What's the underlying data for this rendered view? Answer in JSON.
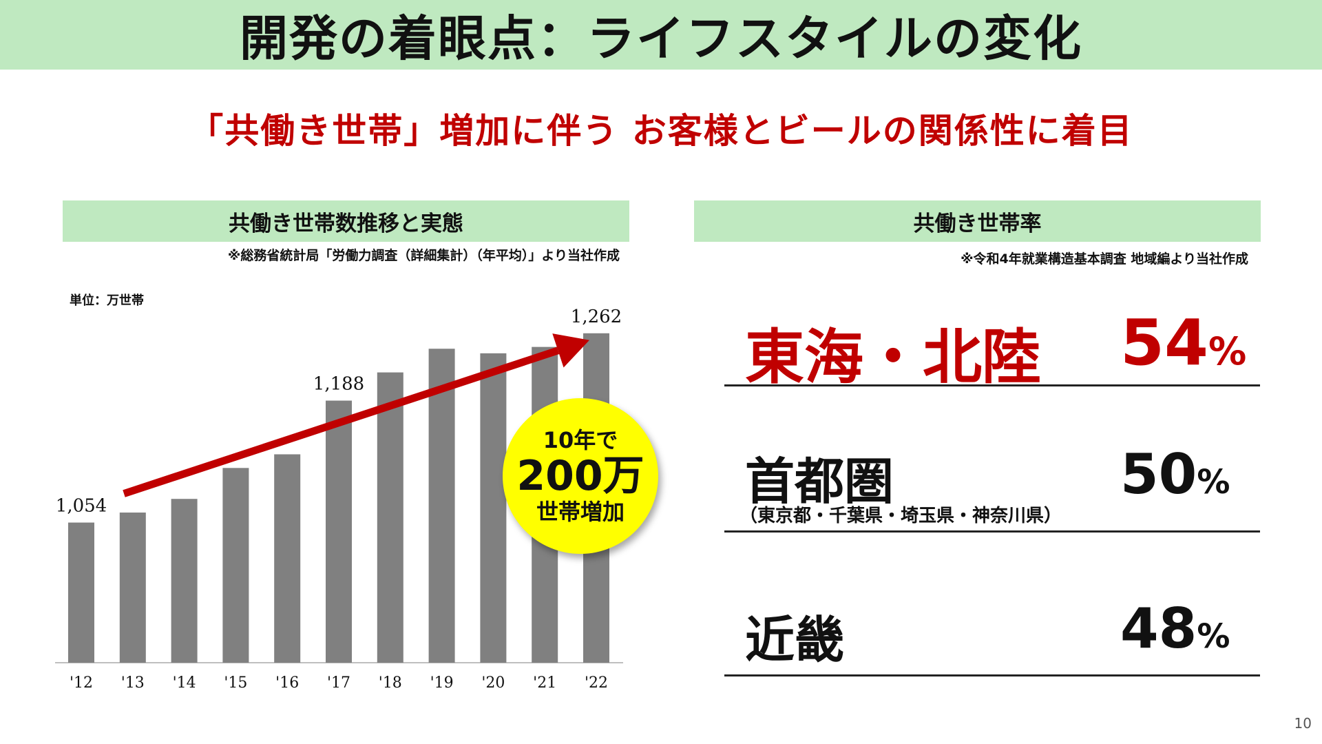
{
  "title": "開発の着眼点：ライフスタイルの変化",
  "subtitle": "「共働き世帯」増加に伴う お客様とビールの関係性に着目",
  "left_panel": {
    "header": "共働き世帯数推移と実態",
    "source": "※総務省統計局「労働力調査（詳細集計）（年平均）」より当社作成",
    "unit": "単位：万世帯"
  },
  "badge": {
    "line1": "10年で",
    "line2": "200万",
    "line3": "世帯増加",
    "color": "#ffff00"
  },
  "right_panel": {
    "header": "共働き世帯率",
    "source": "※令和4年就業構造基本調査 地域編より当社作成",
    "rows": [
      {
        "name": "東海・北陸",
        "value": "54",
        "unit": "%",
        "note": "",
        "color": "#c00000"
      },
      {
        "name": "首都圏",
        "value": "50",
        "unit": "%",
        "note": "（東京都・千葉県・埼玉県・神奈川県）",
        "color": "#111111"
      },
      {
        "name": "近畿",
        "value": "48",
        "unit": "%",
        "note": "",
        "color": "#111111"
      }
    ]
  },
  "page_number": "10",
  "chart_data": {
    "type": "bar",
    "categories": [
      "'12",
      "'13",
      "'14",
      "'15",
      "'16",
      "'17",
      "'18",
      "'19",
      "'20",
      "'21",
      "'22"
    ],
    "values": [
      1054,
      1065,
      1080,
      1114,
      1129,
      1188,
      1219,
      1245,
      1240,
      1247,
      1262
    ],
    "data_labels": {
      "0": "1,054",
      "5": "1,188",
      "10": "1,262"
    },
    "ylim": [
      900,
      1280
    ],
    "bar_color": "#808080",
    "trend_arrow": {
      "from": 0,
      "to": 10,
      "color": "#c00000"
    },
    "grid": false
  }
}
